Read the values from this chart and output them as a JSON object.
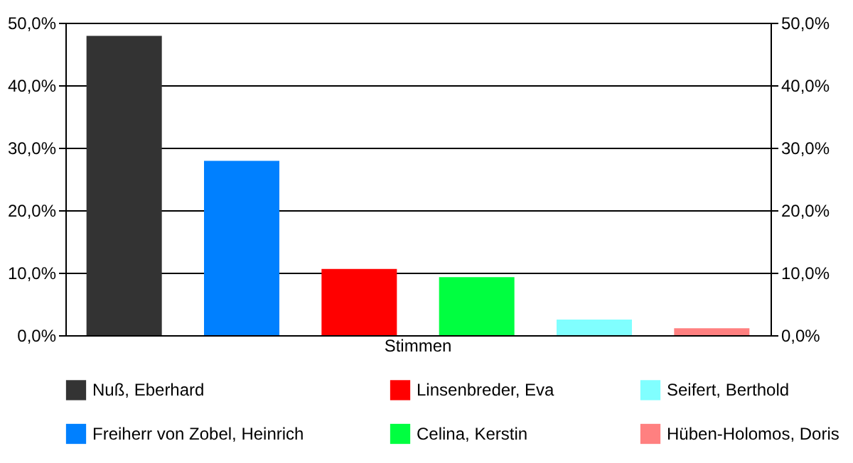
{
  "chart_data": {
    "type": "bar",
    "categories": [
      "Stimmen"
    ],
    "series": [
      {
        "name": "Nuß, Eberhard",
        "color": "#333333",
        "values": [
          47.9
        ]
      },
      {
        "name": "Freiherr von Zobel, Heinrich",
        "color": "#0080ff",
        "values": [
          27.9
        ]
      },
      {
        "name": "Linsenbreder, Eva",
        "color": "#ff0000",
        "values": [
          10.6
        ]
      },
      {
        "name": "Celina, Kerstin",
        "color": "#00ff40",
        "values": [
          9.3
        ]
      },
      {
        "name": "Seifert, Berthold",
        "color": "#80ffff",
        "values": [
          2.5
        ]
      },
      {
        "name": "Hüben-Holomos, Doris",
        "color": "#ff8080",
        "values": [
          1.1
        ]
      }
    ],
    "ylim": [
      0,
      50
    ],
    "yticks": [
      {
        "value": 0,
        "label": "0,0%"
      },
      {
        "value": 10,
        "label": "10,0%"
      },
      {
        "value": 20,
        "label": "20,0%"
      },
      {
        "value": 30,
        "label": "30,0%"
      },
      {
        "value": 40,
        "label": "40,0%"
      },
      {
        "value": 50,
        "label": "50,0%"
      }
    ],
    "grid": "y",
    "legend": "bottom"
  }
}
